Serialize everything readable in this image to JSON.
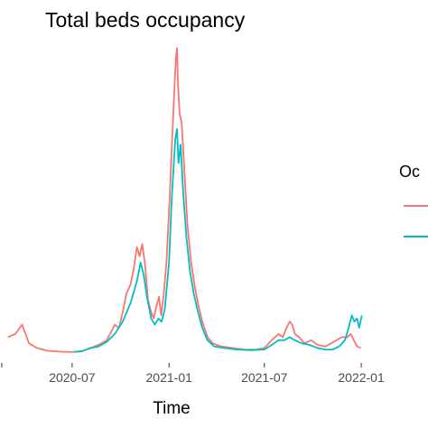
{
  "chart_data": {
    "type": "line",
    "title": "Total beds occupancy",
    "xlabel": "Time",
    "ylabel": "",
    "x_tick_labels": [
      "2020-07",
      "2021-01",
      "2021-07",
      "2022-01"
    ],
    "x_ticks": [
      "2020-07-01",
      "2021-01-01",
      "2021-07-01",
      "2022-01-01"
    ],
    "xlim": [
      "2020-02-15",
      "2022-01-18"
    ],
    "ylim": [
      0,
      100
    ],
    "grid": false,
    "legend": {
      "title": "Oc",
      "position": "right",
      "cut_off_at_right_edge": true
    },
    "series": [
      {
        "color": "#F8766D",
        "points": [
          [
            "2020-03-01",
            6
          ],
          [
            "2020-03-15",
            7
          ],
          [
            "2020-03-28",
            10
          ],
          [
            "2020-04-10",
            4
          ],
          [
            "2020-04-25",
            2.5
          ],
          [
            "2020-05-15",
            1.6
          ],
          [
            "2020-06-10",
            1.3
          ],
          [
            "2020-07-01",
            1.2
          ],
          [
            "2020-07-20",
            1.5
          ],
          [
            "2020-08-05",
            2.5
          ],
          [
            "2020-08-20",
            3.5
          ],
          [
            "2020-09-05",
            5
          ],
          [
            "2020-09-20",
            10
          ],
          [
            "2020-09-28",
            9
          ],
          [
            "2020-10-05",
            14
          ],
          [
            "2020-10-12",
            20
          ],
          [
            "2020-10-20",
            23
          ],
          [
            "2020-10-26",
            28
          ],
          [
            "2020-11-01",
            35
          ],
          [
            "2020-11-06",
            32
          ],
          [
            "2020-11-11",
            36
          ],
          [
            "2020-11-16",
            30
          ],
          [
            "2020-11-22",
            18
          ],
          [
            "2020-11-28",
            14
          ],
          [
            "2020-12-03",
            12
          ],
          [
            "2020-12-08",
            16
          ],
          [
            "2020-12-13",
            19
          ],
          [
            "2020-12-17",
            13
          ],
          [
            "2020-12-22",
            20
          ],
          [
            "2020-12-27",
            30
          ],
          [
            "2021-01-02",
            50
          ],
          [
            "2021-01-07",
            70
          ],
          [
            "2021-01-11",
            85
          ],
          [
            "2021-01-14",
            96
          ],
          [
            "2021-01-16",
            99
          ],
          [
            "2021-01-18",
            88
          ],
          [
            "2021-01-21",
            78
          ],
          [
            "2021-01-25",
            75
          ],
          [
            "2021-01-30",
            60
          ],
          [
            "2021-02-05",
            42
          ],
          [
            "2021-02-12",
            30
          ],
          [
            "2021-02-19",
            22
          ],
          [
            "2021-02-26",
            16
          ],
          [
            "2021-03-05",
            11
          ],
          [
            "2021-03-15",
            6
          ],
          [
            "2021-03-25",
            4
          ],
          [
            "2021-04-10",
            3
          ],
          [
            "2021-05-01",
            2.5
          ],
          [
            "2021-05-25",
            2
          ],
          [
            "2021-06-15",
            2
          ],
          [
            "2021-07-01",
            2.5
          ],
          [
            "2021-07-15",
            5
          ],
          [
            "2021-07-28",
            7
          ],
          [
            "2021-08-05",
            6
          ],
          [
            "2021-08-12",
            9
          ],
          [
            "2021-08-18",
            11
          ],
          [
            "2021-08-23",
            10
          ],
          [
            "2021-08-28",
            7
          ],
          [
            "2021-09-05",
            6
          ],
          [
            "2021-09-15",
            4
          ],
          [
            "2021-09-28",
            5
          ],
          [
            "2021-10-10",
            3.5
          ],
          [
            "2021-10-25",
            3
          ],
          [
            "2021-11-05",
            4
          ],
          [
            "2021-11-15",
            5
          ],
          [
            "2021-11-25",
            6
          ],
          [
            "2021-12-05",
            6
          ],
          [
            "2021-12-12",
            7
          ],
          [
            "2021-12-18",
            5
          ],
          [
            "2021-12-24",
            3
          ],
          [
            "2021-12-31",
            2.5
          ]
        ]
      },
      {
        "color": "#00BFC4",
        "points": [
          [
            "2020-07-05",
            1.2
          ],
          [
            "2020-07-20",
            1.5
          ],
          [
            "2020-08-05",
            2.5
          ],
          [
            "2020-08-20",
            3
          ],
          [
            "2020-09-05",
            4.5
          ],
          [
            "2020-09-20",
            7
          ],
          [
            "2020-10-05",
            11
          ],
          [
            "2020-10-20",
            17
          ],
          [
            "2020-11-01",
            24
          ],
          [
            "2020-11-08",
            30
          ],
          [
            "2020-11-14",
            26
          ],
          [
            "2020-11-20",
            19
          ],
          [
            "2020-11-28",
            12
          ],
          [
            "2020-12-05",
            10
          ],
          [
            "2020-12-12",
            12
          ],
          [
            "2020-12-18",
            11
          ],
          [
            "2020-12-24",
            15
          ],
          [
            "2021-01-01",
            30
          ],
          [
            "2021-01-06",
            50
          ],
          [
            "2021-01-10",
            62
          ],
          [
            "2021-01-13",
            70
          ],
          [
            "2021-01-16",
            73
          ],
          [
            "2021-01-19",
            62
          ],
          [
            "2021-01-23",
            68
          ],
          [
            "2021-01-28",
            52
          ],
          [
            "2021-02-03",
            38
          ],
          [
            "2021-02-10",
            27
          ],
          [
            "2021-02-17",
            20
          ],
          [
            "2021-02-25",
            14
          ],
          [
            "2021-03-05",
            9
          ],
          [
            "2021-03-15",
            5
          ],
          [
            "2021-03-28",
            3
          ],
          [
            "2021-04-15",
            2.5
          ],
          [
            "2021-05-10",
            2
          ],
          [
            "2021-06-05",
            1.8
          ],
          [
            "2021-07-01",
            2
          ],
          [
            "2021-07-15",
            3.5
          ],
          [
            "2021-07-28",
            5
          ],
          [
            "2021-08-08",
            5
          ],
          [
            "2021-08-18",
            6
          ],
          [
            "2021-08-28",
            5
          ],
          [
            "2021-09-10",
            4
          ],
          [
            "2021-09-25",
            3.5
          ],
          [
            "2021-10-10",
            2.5
          ],
          [
            "2021-10-25",
            2
          ],
          [
            "2021-11-08",
            2
          ],
          [
            "2021-11-20",
            3
          ],
          [
            "2021-12-01",
            5
          ],
          [
            "2021-12-08",
            9
          ],
          [
            "2021-12-14",
            13
          ],
          [
            "2021-12-19",
            11
          ],
          [
            "2021-12-24",
            12
          ],
          [
            "2021-12-28",
            9
          ],
          [
            "2022-01-02",
            13
          ]
        ]
      }
    ]
  }
}
